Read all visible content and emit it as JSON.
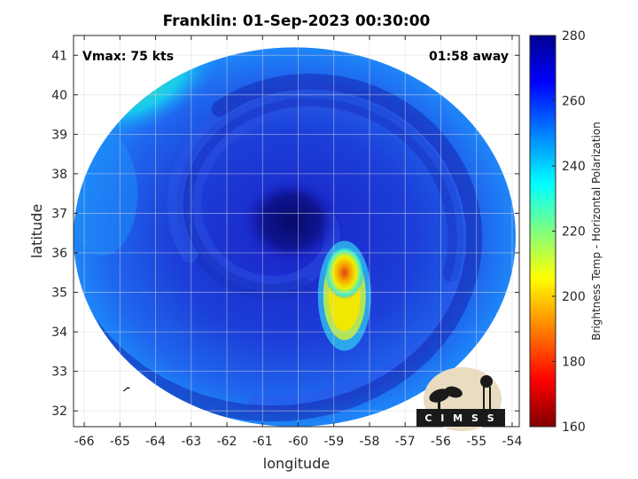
{
  "chart_data": {
    "type": "heatmap",
    "title": "Franklin: 01-Sep-2023 00:30:00",
    "xlabel": "longitude",
    "ylabel": "latitude",
    "xlim": [
      -66.3,
      -53.8
    ],
    "ylim": [
      31.6,
      41.5
    ],
    "xticks": [
      -66,
      -65,
      -64,
      -63,
      -62,
      -61,
      -60,
      -59,
      -58,
      -57,
      -56,
      -55,
      -54
    ],
    "yticks": [
      32,
      33,
      34,
      35,
      36,
      37,
      38,
      39,
      40,
      41
    ],
    "grid": true,
    "annotations": {
      "left": "Vmax: 75 kts",
      "right": "01:58 away"
    },
    "colorbar": {
      "label": "Brightness Temp - Horizontal Polarization",
      "range": [
        160,
        280
      ],
      "ticks": [
        160,
        180,
        200,
        220,
        240,
        260,
        280
      ],
      "colormap": "jet"
    },
    "swath": {
      "center_lon": -60.1,
      "center_lat": 36.4,
      "radius_lon": 6.2,
      "radius_lat": 4.8
    },
    "features": [
      {
        "name": "eye",
        "lon": -60.2,
        "lat": 36.8,
        "value": 268
      },
      {
        "name": "convective core",
        "lon": -58.7,
        "lat": 35.5,
        "value": 190
      },
      {
        "name": "rain band",
        "lon": -58.8,
        "lat": 34.8,
        "value": 205
      },
      {
        "name": "north-west dry region",
        "lon": -64.5,
        "lat": 40.4,
        "value": 230
      }
    ]
  },
  "logo": {
    "text": "CIMSS"
  },
  "colors": {
    "axis": "#262626",
    "grid": "#d9d9d9",
    "jet": [
      "#00008f",
      "#0000ff",
      "#0080ff",
      "#00ffff",
      "#80ff80",
      "#ffff00",
      "#ff8000",
      "#ff0000",
      "#800000"
    ]
  }
}
